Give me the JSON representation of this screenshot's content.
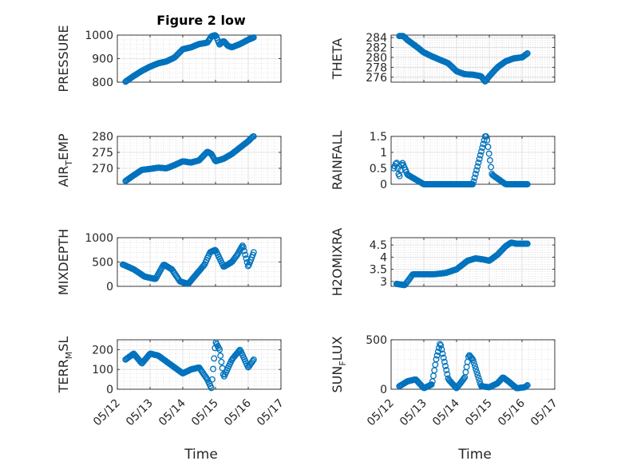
{
  "title": "Figure 2 low",
  "x_axis": {
    "label": "Time",
    "domain": [
      "2023-05-12",
      "2023-05-17"
    ],
    "tick_labels": [
      "05/12",
      "05/13",
      "05/14",
      "05/15",
      "05/16",
      "05/17"
    ]
  },
  "marker_color": "#0072BD",
  "chart_data": [
    {
      "type": "scatter",
      "name": "pressure",
      "ylabel": "PRESSURE",
      "ylim": [
        800,
        1000
      ],
      "yticks": [
        800,
        900,
        1000
      ],
      "grid": true,
      "minor_grid": true,
      "x": [
        "05/12 06:00",
        "05/12 12:00",
        "05/12 18:00",
        "05/13 00:00",
        "05/13 06:00",
        "05/13 12:00",
        "05/13 18:00",
        "05/14 00:00",
        "05/14 06:00",
        "05/14 12:00",
        "05/14 18:00",
        "05/14 21:00",
        "05/15 00:00",
        "05/15 03:00",
        "05/15 06:00",
        "05/15 09:00",
        "05/15 12:00",
        "05/15 18:00",
        "05/16 00:00",
        "05/16 04:00"
      ],
      "y": [
        802,
        826,
        848,
        866,
        880,
        888,
        905,
        940,
        948,
        962,
        968,
        995,
        1000,
        960,
        975,
        955,
        948,
        962,
        980,
        990
      ]
    },
    {
      "type": "scatter",
      "name": "theta",
      "ylabel": "THETA",
      "ylim": [
        275,
        284.5
      ],
      "yticks": [
        276,
        278,
        280,
        282,
        284
      ],
      "grid": true,
      "minor_grid": true,
      "x": [
        "05/12 06:00",
        "05/12 09:00",
        "05/12 12:00",
        "05/12 18:00",
        "05/13 00:00",
        "05/13 06:00",
        "05/13 12:00",
        "05/13 18:00",
        "05/14 00:00",
        "05/14 06:00",
        "05/14 12:00",
        "05/14 18:00",
        "05/14 21:00",
        "05/15 00:00",
        "05/15 06:00",
        "05/15 12:00",
        "05/15 18:00",
        "05/16 00:00",
        "05/16 04:00"
      ],
      "y": [
        284.3,
        284.3,
        283.5,
        282.3,
        281.0,
        280.2,
        279.5,
        278.8,
        277.2,
        276.6,
        276.5,
        276.2,
        275.1,
        276.2,
        278.0,
        279.2,
        279.8,
        280.0,
        280.8
      ]
    },
    {
      "type": "scatter",
      "name": "air_temp",
      "ylabel": "AIR_TEMP",
      "ylim": [
        265,
        280
      ],
      "yticks": [
        270,
        275,
        280
      ],
      "grid": true,
      "minor_grid": true,
      "x": [
        "05/12 06:00",
        "05/12 12:00",
        "05/12 18:00",
        "05/13 00:00",
        "05/13 06:00",
        "05/13 12:00",
        "05/13 18:00",
        "05/14 00:00",
        "05/14 06:00",
        "05/14 12:00",
        "05/14 18:00",
        "05/14 21:00",
        "05/15 00:00",
        "05/15 06:00",
        "05/15 12:00",
        "05/15 18:00",
        "05/16 00:00",
        "05/16 04:00"
      ],
      "y": [
        266.0,
        267.8,
        269.5,
        269.8,
        270.2,
        270.0,
        271.0,
        272.2,
        271.8,
        272.5,
        275.2,
        274.5,
        272.2,
        273.0,
        274.5,
        276.5,
        278.5,
        280.2
      ]
    },
    {
      "type": "scatter",
      "name": "rainfall",
      "ylabel": "RAINFALL",
      "ylim": [
        0,
        1.5
      ],
      "yticks": [
        0,
        0.5,
        1,
        1.5
      ],
      "grid": true,
      "minor_grid": true,
      "x": [
        "05/12 02:00",
        "05/12 04:00",
        "05/12 06:00",
        "05/12 08:00",
        "05/12 10:00",
        "05/12 12:00",
        "05/13 00:00",
        "05/13 12:00",
        "05/14 00:00",
        "05/14 12:00",
        "05/14 21:00",
        "05/14 22:00",
        "05/15 00:00",
        "05/15 02:00",
        "05/15 12:00",
        "05/16 00:00",
        "05/16 04:00"
      ],
      "y": [
        0.5,
        0.7,
        0.2,
        0.7,
        0.5,
        0.3,
        0,
        0,
        0,
        0,
        1.5,
        1.5,
        0.9,
        0.3,
        0,
        0,
        0
      ]
    },
    {
      "type": "scatter",
      "name": "mixdepth",
      "ylabel": "MIXDEPTH",
      "ylim": [
        0,
        1000
      ],
      "yticks": [
        0,
        500,
        1000
      ],
      "grid": true,
      "minor_grid": true,
      "x": [
        "05/12 04:00",
        "05/12 12:00",
        "05/12 20:00",
        "05/13 04:00",
        "05/13 10:00",
        "05/13 16:00",
        "05/13 22:00",
        "05/14 04:00",
        "05/14 10:00",
        "05/14 16:00",
        "05/14 20:00",
        "05/15 00:00",
        "05/15 06:00",
        "05/15 12:00",
        "05/15 16:00",
        "05/15 20:00",
        "05/16 00:00",
        "05/16 04:00"
      ],
      "y": [
        450,
        350,
        200,
        150,
        450,
        350,
        100,
        50,
        250,
        450,
        700,
        750,
        400,
        500,
        650,
        850,
        400,
        700
      ]
    },
    {
      "type": "scatter",
      "name": "h2omixra",
      "ylabel": "H2OMIXRA",
      "ylim": [
        2.8,
        4.8
      ],
      "yticks": [
        3,
        3.5,
        4,
        4.5
      ],
      "grid": true,
      "minor_grid": true,
      "x": [
        "05/12 04:00",
        "05/12 10:00",
        "05/12 16:00",
        "05/13 00:00",
        "05/13 08:00",
        "05/13 16:00",
        "05/14 00:00",
        "05/14 08:00",
        "05/14 14:00",
        "05/14 20:00",
        "05/15 00:00",
        "05/15 06:00",
        "05/15 12:00",
        "05/15 16:00",
        "05/15 20:00",
        "05/16 04:00"
      ],
      "y": [
        2.9,
        2.85,
        3.3,
        3.3,
        3.3,
        3.35,
        3.5,
        3.85,
        3.95,
        3.9,
        3.85,
        4.1,
        4.45,
        4.6,
        4.55,
        4.55
      ]
    },
    {
      "type": "scatter",
      "name": "terr_msl",
      "ylabel": "TERR_MSL",
      "ylim": [
        0,
        250
      ],
      "yticks": [
        0,
        100,
        200
      ],
      "grid": true,
      "minor_grid": true,
      "x": [
        "05/12 06:00",
        "05/12 12:00",
        "05/12 18:00",
        "05/13 00:00",
        "05/13 06:00",
        "05/13 12:00",
        "05/13 18:00",
        "05/14 00:00",
        "05/14 06:00",
        "05/14 12:00",
        "05/14 18:00",
        "05/14 21:00",
        "05/15 00:00",
        "05/15 03:00",
        "05/15 06:00",
        "05/15 12:00",
        "05/15 18:00",
        "05/16 00:00",
        "05/16 04:00"
      ],
      "y": [
        150,
        180,
        130,
        180,
        170,
        140,
        110,
        80,
        100,
        110,
        50,
        5,
        240,
        200,
        60,
        150,
        200,
        110,
        150
      ]
    },
    {
      "type": "scatter",
      "name": "sun_flux",
      "ylabel": "SUN_FLUX",
      "ylim": [
        0,
        500
      ],
      "yticks": [
        0,
        500
      ],
      "grid": true,
      "minor_grid": true,
      "x": [
        "05/12 06:00",
        "05/12 12:00",
        "05/12 18:00",
        "05/13 00:00",
        "05/13 06:00",
        "05/13 09:00",
        "05/13 12:00",
        "05/13 18:00",
        "05/14 00:00",
        "05/14 06:00",
        "05/14 09:00",
        "05/14 12:00",
        "05/14 18:00",
        "05/15 00:00",
        "05/15 06:00",
        "05/15 10:00",
        "05/15 14:00",
        "05/15 20:00",
        "05/16 02:00",
        "05/16 04:00"
      ],
      "y": [
        30,
        80,
        100,
        10,
        50,
        300,
        470,
        100,
        10,
        120,
        350,
        300,
        30,
        20,
        60,
        120,
        80,
        10,
        20,
        40
      ]
    }
  ]
}
